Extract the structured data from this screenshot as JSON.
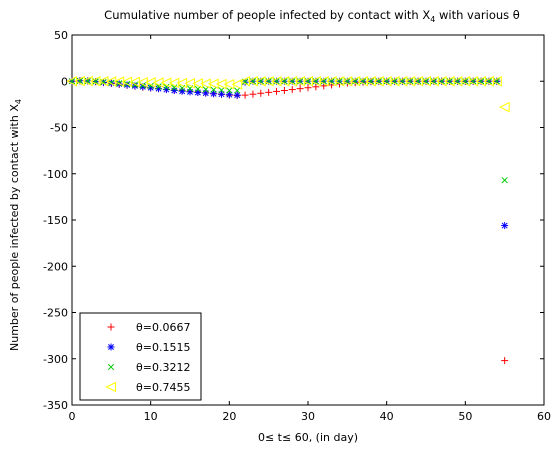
{
  "chart_data": {
    "type": "scatter",
    "title_parts": {
      "before": "Cumulative number of people infected by contact with X",
      "sub": "4",
      "after": " with various θ"
    },
    "xlabel": "0≤ t≤ 60, (in day)",
    "ylabel_parts": {
      "before": "Number of people infected by contact with X",
      "sub": "4"
    },
    "xlim": [
      0,
      60
    ],
    "ylim": [
      -350,
      50
    ],
    "xticks": [
      0,
      10,
      20,
      30,
      40,
      50,
      60
    ],
    "yticks": [
      50,
      0,
      -50,
      -100,
      -150,
      -200,
      -250,
      -300,
      -350
    ],
    "grid": false,
    "legend_position": "bottom-left",
    "series": [
      {
        "name": "θ=0.0667",
        "marker": "plus",
        "color": "#ff0000",
        "x": [
          0,
          1,
          2,
          3,
          4,
          5,
          6,
          7,
          8,
          9,
          10,
          11,
          12,
          13,
          14,
          15,
          16,
          17,
          18,
          19,
          20,
          21,
          22,
          23,
          24,
          25,
          26,
          27,
          28,
          29,
          30,
          31,
          32,
          33,
          34,
          35,
          36,
          37,
          38,
          39,
          40,
          41,
          42,
          43,
          44,
          45,
          46,
          47,
          48,
          49,
          50,
          51,
          52,
          53,
          54,
          55
        ],
        "y": [
          0,
          0.5,
          0.3,
          -0.5,
          -1.5,
          -2.5,
          -3.5,
          -4.5,
          -5.5,
          -6.5,
          -7.3,
          -8,
          -8.8,
          -9.5,
          -10.2,
          -11,
          -11.8,
          -12.6,
          -13.4,
          -14.2,
          -15,
          -15.5,
          -15,
          -14,
          -13,
          -12,
          -11,
          -10,
          -9,
          -8,
          -7,
          -6,
          -5,
          -4,
          -3,
          -2,
          -1.5,
          -1,
          -0.5,
          0,
          0,
          0,
          0,
          0,
          0,
          0,
          0,
          0,
          0,
          0,
          0,
          0,
          0,
          0,
          0,
          -302
        ]
      },
      {
        "name": "θ=0.1515",
        "marker": "star",
        "color": "#0000ff",
        "x": [
          0,
          1,
          2,
          3,
          4,
          5,
          6,
          7,
          8,
          9,
          10,
          11,
          12,
          13,
          14,
          15,
          16,
          17,
          18,
          19,
          20,
          21,
          22,
          23,
          24,
          25,
          26,
          27,
          28,
          29,
          30,
          31,
          32,
          33,
          34,
          35,
          36,
          37,
          38,
          39,
          40,
          41,
          42,
          43,
          44,
          45,
          46,
          47,
          48,
          49,
          50,
          51,
          52,
          53,
          54,
          55
        ],
        "y": [
          0,
          0.5,
          0.3,
          -0.3,
          -1.2,
          -2,
          -3,
          -4,
          -5,
          -6,
          -7,
          -8,
          -9,
          -10,
          -10.8,
          -11.5,
          -12.2,
          -12.8,
          -13.5,
          -14,
          -14.5,
          -15,
          -1,
          0,
          0,
          0,
          0,
          0,
          0,
          0,
          0,
          0,
          0,
          0,
          0,
          0,
          0,
          0,
          0,
          0,
          0,
          0,
          0,
          0,
          0,
          0,
          0,
          0,
          0,
          0,
          0,
          0,
          0,
          0,
          0,
          -156
        ]
      },
      {
        "name": "θ=0.3212",
        "marker": "cross",
        "color": "#00cc00",
        "x": [
          0,
          1,
          2,
          3,
          4,
          5,
          6,
          7,
          8,
          9,
          10,
          11,
          12,
          13,
          14,
          15,
          16,
          17,
          18,
          19,
          20,
          21,
          22,
          23,
          24,
          25,
          26,
          27,
          28,
          29,
          30,
          31,
          32,
          33,
          34,
          35,
          36,
          37,
          38,
          39,
          40,
          41,
          42,
          43,
          44,
          45,
          46,
          47,
          48,
          49,
          50,
          51,
          52,
          53,
          54,
          55
        ],
        "y": [
          0,
          0.3,
          0.2,
          -0.2,
          -0.8,
          -1.5,
          -2.2,
          -3,
          -3.7,
          -4.4,
          -5,
          -5.6,
          -6.2,
          -6.8,
          -7.3,
          -7.8,
          -8.3,
          -8.8,
          -9.2,
          -9.6,
          -10,
          -10,
          -0.5,
          0,
          0,
          0,
          0,
          0,
          0,
          0,
          0,
          0,
          0,
          0,
          0,
          0,
          0,
          0,
          0,
          0,
          0,
          0,
          0,
          0,
          0,
          0,
          0,
          0,
          0,
          0,
          0,
          0,
          0,
          0,
          0,
          -107
        ]
      },
      {
        "name": "θ=0.7455",
        "marker": "triangle-left",
        "color": "#ffff00",
        "x": [
          0,
          1,
          2,
          3,
          4,
          5,
          6,
          7,
          8,
          9,
          10,
          11,
          12,
          13,
          14,
          15,
          16,
          17,
          18,
          19,
          20,
          21,
          22,
          23,
          24,
          25,
          26,
          27,
          28,
          29,
          30,
          31,
          32,
          33,
          34,
          35,
          36,
          37,
          38,
          39,
          40,
          41,
          42,
          43,
          44,
          45,
          46,
          47,
          48,
          49,
          50,
          51,
          52,
          53,
          54,
          55
        ],
        "y": [
          0,
          0.2,
          0.2,
          0,
          0,
          -0.2,
          -0.4,
          -0.6,
          -0.8,
          -1,
          -1.2,
          -1.4,
          -1.6,
          -1.8,
          -2,
          -2.2,
          -2.4,
          -2.6,
          -2.8,
          -3,
          -3.2,
          -3.3,
          0,
          0,
          0,
          0,
          0,
          0,
          0,
          0,
          0,
          0,
          0,
          0,
          0,
          0,
          0,
          0,
          0,
          0,
          0,
          0,
          0,
          0,
          0,
          0,
          0,
          0,
          0,
          0,
          0,
          0,
          0,
          0,
          0,
          -28
        ]
      }
    ]
  }
}
